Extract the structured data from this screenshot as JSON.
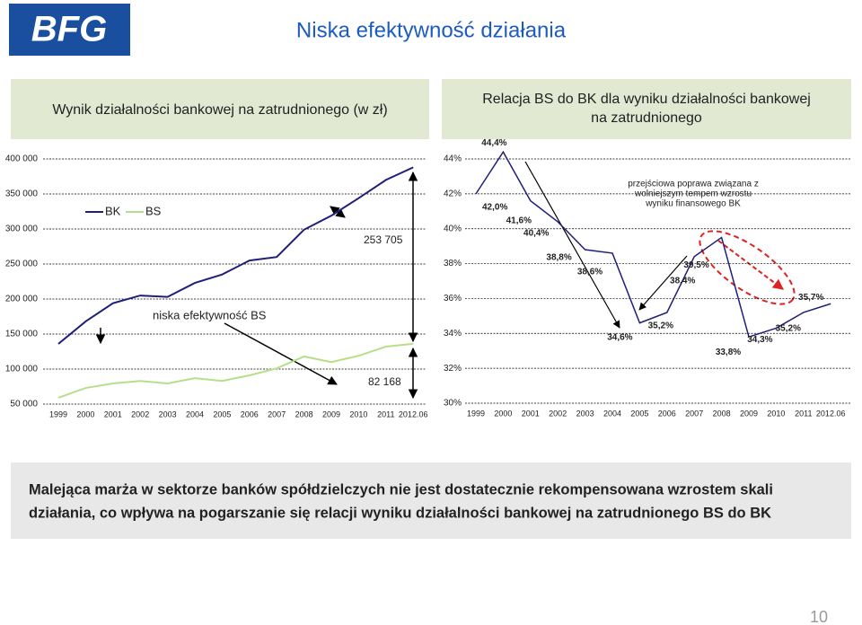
{
  "logo": "BFG",
  "title": "Niska efektywność działania",
  "summary": [
    "Malejąca marża w sektorze banków spółdzielczych nie jest dostatecznie rekompensowana wzrostem skali",
    "działania, co wpływa na pogarszanie się relacji wyniku działalności bankowej na zatrudnionego BS do BK"
  ],
  "page_number": "10",
  "chart_data": [
    {
      "type": "line",
      "title": "Wynik działalności bankowej na zatrudnionego (w zł)",
      "categories": [
        "1999",
        "2000",
        "2001",
        "2002",
        "2003",
        "2004",
        "2005",
        "2006",
        "2007",
        "2008",
        "2009",
        "2010",
        "2011",
        "2012.06"
      ],
      "series": [
        {
          "name": "BK",
          "color": "#1f1f7a",
          "values": [
            136000,
            168000,
            194000,
            205000,
            203000,
            223000,
            235000,
            255000,
            260000,
            299000,
            319000,
            344000,
            370000,
            388000
          ]
        },
        {
          "name": "BS",
          "color": "#b5e08a",
          "values": [
            59000,
            73000,
            79500,
            83000,
            79500,
            87000,
            83000,
            91000,
            101000,
            118000,
            110000,
            119000,
            132000,
            136000
          ]
        }
      ],
      "annotations": [
        "253 705",
        "82 168",
        "niska efektywność BS"
      ],
      "ylim": [
        50000,
        400000
      ],
      "yticks": [
        {
          "value": 50000,
          "label": "50 000"
        },
        {
          "value": 100000,
          "label": "100 000"
        },
        {
          "value": 150000,
          "label": "150 000"
        },
        {
          "value": 200000,
          "label": "200 000"
        },
        {
          "value": 250000,
          "label": "250 000"
        },
        {
          "value": 300000,
          "label": "300 000"
        },
        {
          "value": 350000,
          "label": "350 000"
        },
        {
          "value": 400000,
          "label": "400 000"
        }
      ],
      "grid": true
    },
    {
      "type": "line",
      "title": [
        "Relacja BS do BK dla wyniku działalności bankowej",
        "na zatrudnionego"
      ],
      "categories": [
        "1999",
        "2000",
        "2001",
        "2002",
        "2003",
        "2004",
        "2005",
        "2006",
        "2007",
        "2008",
        "2009",
        "2010",
        "2011",
        "2012.06"
      ],
      "color": "#1f1f7a",
      "values": [
        42.0,
        44.4,
        41.6,
        40.4,
        38.8,
        38.6,
        34.6,
        35.2,
        38.4,
        39.5,
        33.8,
        34.3,
        35.2,
        35.7
      ],
      "value_labels": [
        "42,0%",
        "44,4%",
        "41,6%",
        "40,4%",
        "38,8%",
        "38,6%",
        "34,6%",
        "35,2%",
        "38,4%",
        "39,5%",
        "33,8%",
        "34,3%",
        "35,2%",
        "35,7%"
      ],
      "annotations": [
        "przejściowa poprawa związana z",
        "wolniejszym tempem wzrostu",
        "wyniku finansowego BK"
      ],
      "ylim": [
        30,
        44
      ],
      "yticks": [
        {
          "value": 30,
          "label": "30%"
        },
        {
          "value": 32,
          "label": "32%"
        },
        {
          "value": 34,
          "label": "34%"
        },
        {
          "value": 36,
          "label": "36%"
        },
        {
          "value": 38,
          "label": "38%"
        },
        {
          "value": 40,
          "label": "40%"
        },
        {
          "value": 42,
          "label": "42%"
        },
        {
          "value": 44,
          "label": "44%"
        }
      ],
      "grid": true
    }
  ]
}
